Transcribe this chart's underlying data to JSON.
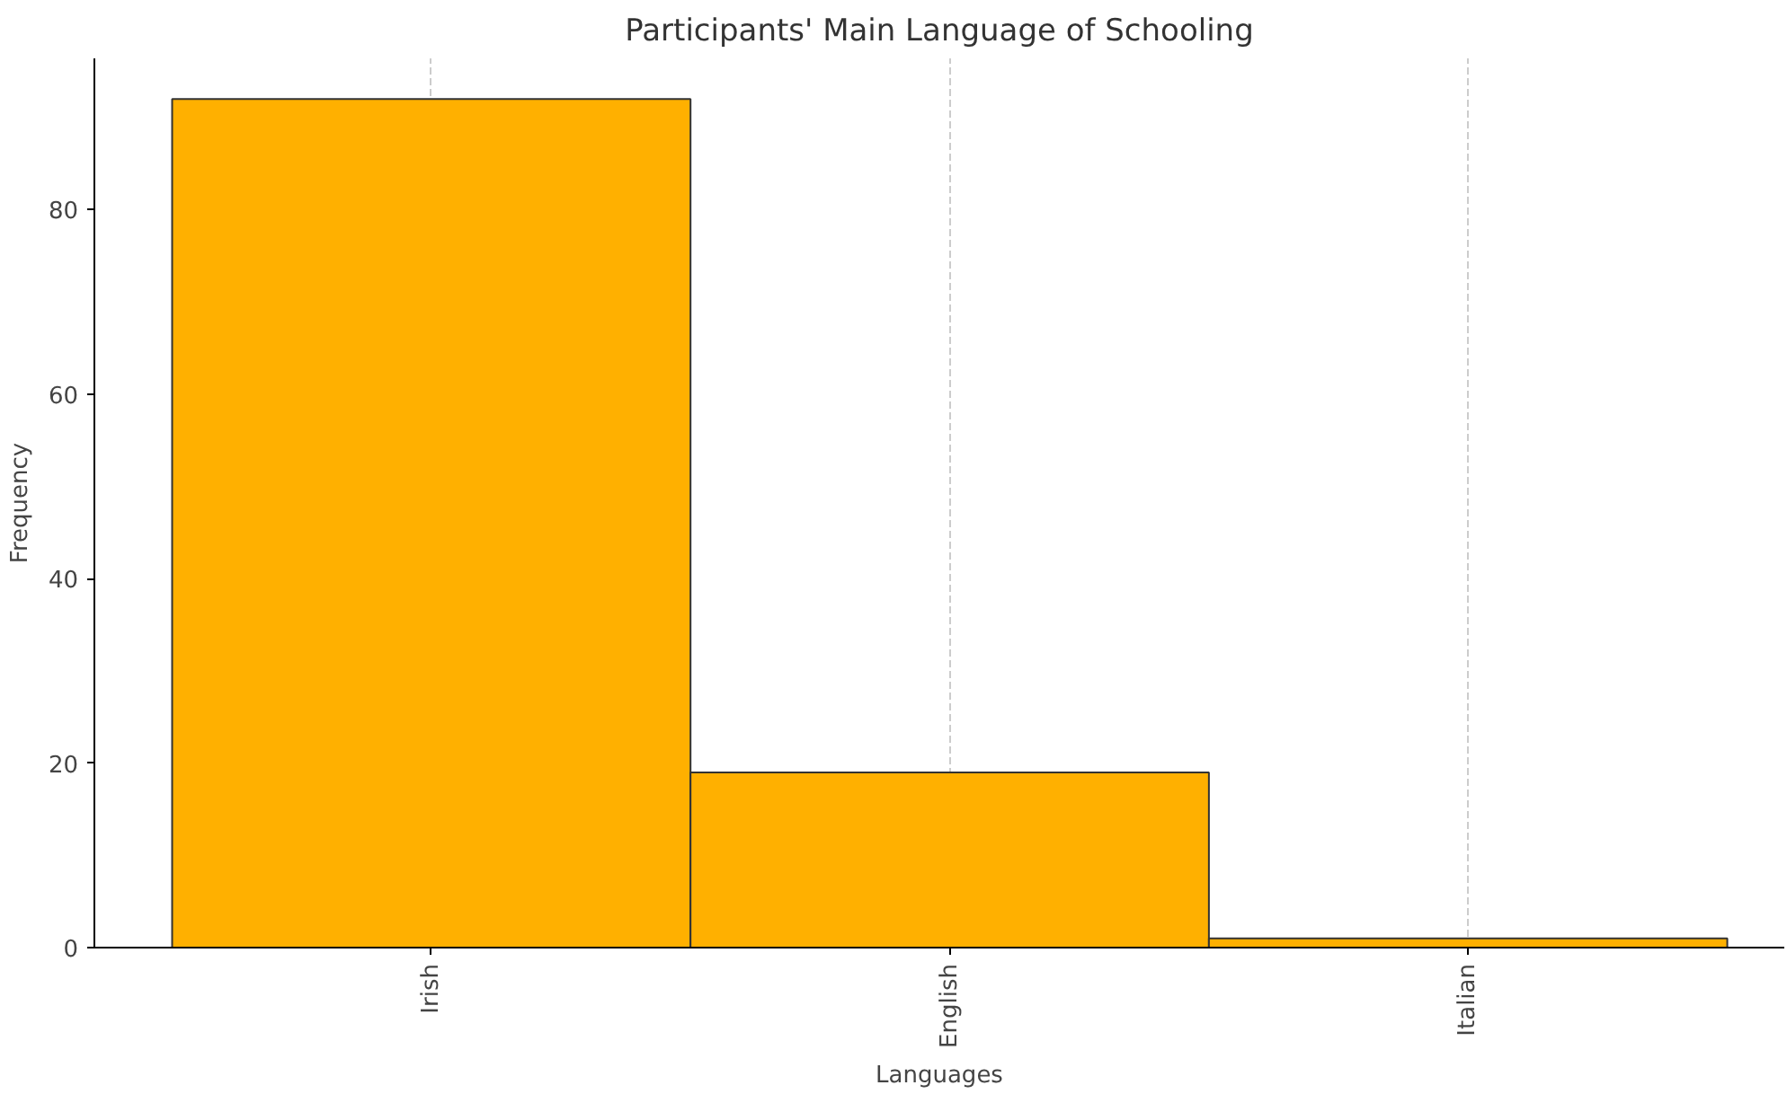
{
  "chart_data": {
    "type": "bar",
    "title": "Participants' Main Language of Schooling",
    "xlabel": "Languages",
    "ylabel": "Frequency",
    "categories": [
      "Irish",
      "English",
      "Italian"
    ],
    "values": [
      92,
      19,
      1
    ],
    "color": "#ffb000",
    "ylim": [
      0,
      96.4
    ],
    "yticks": [
      0,
      20,
      40,
      60,
      80
    ],
    "grid": "x"
  }
}
